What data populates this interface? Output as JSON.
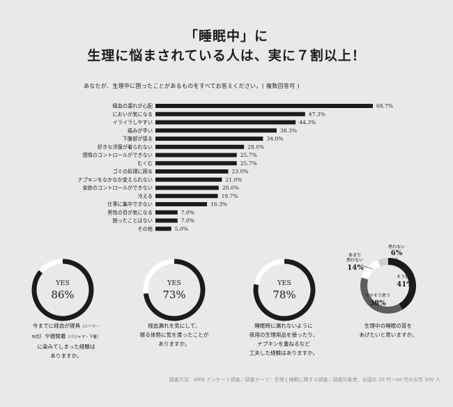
{
  "title_line1": "「睡眠中」に",
  "title_line2": "生理に悩まされている人は、実に７割以上！",
  "question": "あなたが、生理中に困ったことがあるものをすべてお答えください。( 複数回答可 )",
  "chart_data": [
    {
      "type": "bar",
      "orientation": "horizontal",
      "categories": [
        "経血の漏れが心配",
        "においが気になる",
        "イライラしやすい",
        "痛みが辛い",
        "下腹部が張る",
        "好きな洋服が着られない",
        "感情のコントロールができない",
        "むくむ",
        "ゴミの処理に困る",
        "ナプキンをなかなか変えられない",
        "食欲のコントロールができない",
        "冷える",
        "仕事に集中できない",
        "男性の目が気になる",
        "困ったことはない",
        "その他"
      ],
      "values": [
        68.7,
        47.3,
        44.3,
        38.3,
        34.0,
        28.0,
        25.7,
        25.7,
        23.0,
        21.0,
        20.0,
        19.7,
        16.3,
        7.0,
        7.0,
        5.0
      ],
      "value_labels": [
        "68.7%",
        "47.3%",
        "44.3%",
        "38.3%",
        "34.0%",
        "28.0%",
        "25.7%",
        "25.7%",
        "23.0%",
        "21.0%",
        "20.0%",
        "19.7%",
        "16.3%",
        "7.0%",
        "7.0%",
        "5.0%"
      ],
      "bar_color": "#1b1b1b"
    },
    {
      "type": "pie",
      "style": "donut",
      "center_label": "YES",
      "center_value": "86%",
      "value": 86,
      "caption_lines": [
        {
          "text": "今までに経血が寝具",
          "small": "（シーツ・"
        },
        {
          "text": "",
          "small": "布団",
          "after": "）や寝間着",
          "small2": "（パジャマ・下着）"
        },
        {
          "text": "に染みてしまった経験は"
        },
        {
          "text": "ありますか。"
        }
      ]
    },
    {
      "type": "pie",
      "style": "donut",
      "center_label": "YES",
      "center_value": "73%",
      "value": 73,
      "caption_lines": [
        "経血漏れを気にして、",
        "寝る体勢に気を遣ったことが",
        "ありますか。"
      ]
    },
    {
      "type": "pie",
      "style": "donut",
      "center_label": "YES",
      "center_value": "78%",
      "value": 78,
      "caption_lines": [
        "睡眠時に漏れないように",
        "夜用の生理用品を使ったり、",
        "ナプキンを重ねるなど",
        "工夫した経験はありますか。"
      ]
    },
    {
      "type": "pie",
      "style": "ring",
      "slices": [
        {
          "label": "そう思う",
          "value": 41,
          "display": "41%",
          "color": "#1b1b1b"
        },
        {
          "label": "ややそう思う",
          "value": 38,
          "display": "38%",
          "color": "#5e5e5e"
        },
        {
          "label": "あまり思わない",
          "value": 14,
          "display": "14%",
          "color": "#ffffff"
        },
        {
          "label": "思わない",
          "value": 6,
          "display": "6%",
          "color": "#d0d0d0"
        }
      ],
      "caption_lines": [
        "生理中の睡眠の質を",
        "あげたいと思いますか。"
      ]
    }
  ],
  "footer": "調査方法：WEB アンケート調査／調査テーマ：生理と睡眠に関する調査／調査対象者：全国の 20 代〜40 代の女性 300 人",
  "colors": {
    "background": "#e9e9e9",
    "dark": "#1b1b1b",
    "mid": "#5e5e5e",
    "light": "#ffffff"
  }
}
